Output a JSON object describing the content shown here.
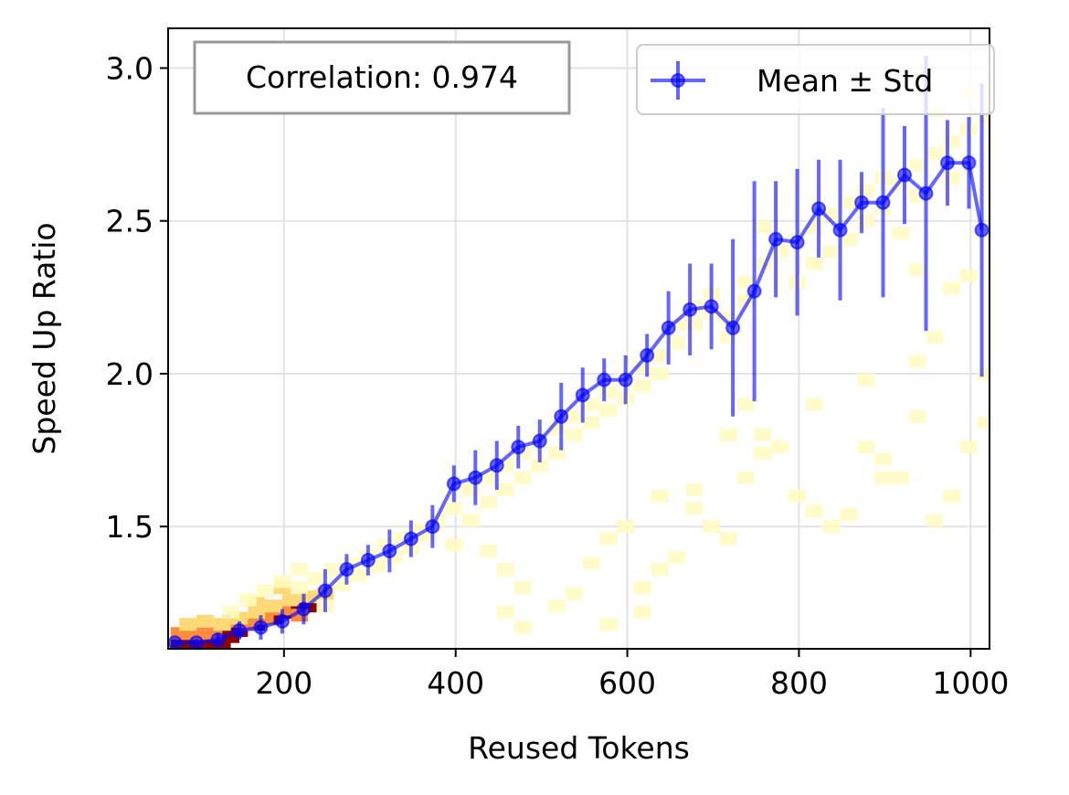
{
  "chart_data": {
    "type": "line",
    "xlabel": "Reused Tokens",
    "ylabel": "Speed Up Ratio",
    "xlim": [
      65,
      1022
    ],
    "ylim": [
      1.1,
      3.13
    ],
    "xticks": [
      200,
      400,
      600,
      800,
      1000
    ],
    "yticks": [
      1.5,
      2.0,
      2.5,
      3.0
    ],
    "xtick_labels": [
      "200",
      "400",
      "600",
      "800",
      "1000"
    ],
    "ytick_labels": [
      "1.5",
      "2.0",
      "2.5",
      "3.0"
    ],
    "grid": true,
    "legend_position": "top-right",
    "annotation": "Correlation: 0.974",
    "colors": {
      "series": "#0000ff",
      "heat_low": "#fffcc0",
      "heat_mid": "#fd8d3c",
      "heat_high": "#8b0000"
    },
    "series": [
      {
        "name": "Mean ± Std",
        "x": [
          73,
          98,
          123,
          148,
          173,
          198,
          223,
          248,
          273,
          298,
          323,
          348,
          373,
          398,
          423,
          448,
          473,
          498,
          523,
          548,
          573,
          598,
          623,
          648,
          673,
          698,
          723,
          748,
          773,
          798,
          823,
          848,
          873,
          898,
          923,
          948,
          973,
          998,
          1013
        ],
        "y": [
          1.12,
          1.12,
          1.13,
          1.16,
          1.17,
          1.19,
          1.23,
          1.29,
          1.36,
          1.39,
          1.42,
          1.46,
          1.5,
          1.64,
          1.66,
          1.7,
          1.76,
          1.78,
          1.86,
          1.93,
          1.98,
          1.98,
          2.06,
          2.15,
          2.21,
          2.22,
          2.15,
          2.27,
          2.44,
          2.43,
          2.54,
          2.47,
          2.56,
          2.56,
          2.65,
          2.59,
          2.69,
          2.69,
          2.47
        ],
        "std": [
          0.01,
          0.01,
          0.02,
          0.03,
          0.04,
          0.04,
          0.05,
          0.07,
          0.05,
          0.05,
          0.07,
          0.06,
          0.07,
          0.06,
          0.09,
          0.08,
          0.07,
          0.07,
          0.11,
          0.09,
          0.07,
          0.08,
          0.07,
          0.12,
          0.15,
          0.14,
          0.29,
          0.36,
          0.19,
          0.24,
          0.16,
          0.23,
          0.1,
          0.31,
          0.16,
          0.45,
          0.14,
          0.15,
          0.48
        ]
      }
    ],
    "heatmap": {
      "cells": [
        [
          78,
          1.12,
          3
        ],
        [
          98,
          1.12,
          3
        ],
        [
          118,
          1.12,
          3
        ],
        [
          128,
          1.12,
          3
        ],
        [
          138,
          1.14,
          3
        ],
        [
          148,
          1.16,
          3
        ],
        [
          168,
          1.18,
          3
        ],
        [
          188,
          1.2,
          3
        ],
        [
          208,
          1.22,
          3
        ],
        [
          228,
          1.24,
          3
        ],
        [
          78,
          1.15,
          2
        ],
        [
          98,
          1.15,
          2
        ],
        [
          118,
          1.15,
          2
        ],
        [
          138,
          1.19,
          2
        ],
        [
          158,
          1.18,
          2
        ],
        [
          178,
          1.2,
          2
        ],
        [
          198,
          1.23,
          2
        ],
        [
          218,
          1.21,
          2
        ],
        [
          88,
          1.18,
          1
        ],
        [
          108,
          1.19,
          1
        ],
        [
          128,
          1.18,
          1
        ],
        [
          148,
          1.2,
          1
        ],
        [
          168,
          1.22,
          1
        ],
        [
          188,
          1.24,
          1
        ],
        [
          208,
          1.26,
          1
        ],
        [
          228,
          1.27,
          1
        ],
        [
          248,
          1.28,
          1
        ],
        [
          168,
          1.25,
          1
        ],
        [
          198,
          1.3,
          1
        ],
        [
          138,
          1.22,
          0
        ],
        [
          158,
          1.26,
          0
        ],
        [
          178,
          1.29,
          0
        ],
        [
          198,
          1.32,
          0
        ],
        [
          218,
          1.3,
          0
        ],
        [
          238,
          1.33,
          0
        ],
        [
          258,
          1.36,
          0
        ],
        [
          278,
          1.38,
          0
        ],
        [
          298,
          1.4,
          0
        ],
        [
          318,
          1.44,
          0
        ],
        [
          338,
          1.46,
          0
        ],
        [
          358,
          1.49,
          0
        ],
        [
          378,
          1.52,
          0
        ],
        [
          218,
          1.36,
          0
        ],
        [
          248,
          1.24,
          0
        ],
        [
          268,
          1.31,
          0
        ],
        [
          288,
          1.34,
          0
        ],
        [
          308,
          1.37,
          0
        ],
        [
          328,
          1.4,
          0
        ],
        [
          348,
          1.43,
          0
        ],
        [
          368,
          1.47,
          0
        ],
        [
          398,
          1.56,
          0
        ],
        [
          418,
          1.62,
          0
        ],
        [
          438,
          1.66,
          0
        ],
        [
          458,
          1.7,
          0
        ],
        [
          478,
          1.74,
          0
        ],
        [
          398,
          1.44,
          0
        ],
        [
          418,
          1.52,
          0
        ],
        [
          438,
          1.58,
          0
        ],
        [
          458,
          1.62,
          0
        ],
        [
          478,
          1.66,
          0
        ],
        [
          498,
          1.78,
          0
        ],
        [
          518,
          1.82,
          0
        ],
        [
          538,
          1.86,
          0
        ],
        [
          558,
          1.9,
          0
        ],
        [
          578,
          1.94,
          0
        ],
        [
          598,
          1.98,
          0
        ],
        [
          618,
          2.02,
          0
        ],
        [
          638,
          2.06,
          0
        ],
        [
          498,
          1.7,
          0
        ],
        [
          518,
          1.74,
          0
        ],
        [
          538,
          1.8,
          0
        ],
        [
          558,
          1.84,
          0
        ],
        [
          578,
          1.88,
          0
        ],
        [
          598,
          1.92,
          0
        ],
        [
          618,
          1.96,
          0
        ],
        [
          638,
          2.0,
          0
        ],
        [
          658,
          2.1,
          0
        ],
        [
          678,
          2.16,
          0
        ],
        [
          698,
          2.2,
          0
        ],
        [
          718,
          2.18,
          0
        ],
        [
          738,
          2.24,
          0
        ],
        [
          658,
          2.16,
          0
        ],
        [
          678,
          2.22,
          0
        ],
        [
          698,
          2.26,
          0
        ],
        [
          718,
          2.12,
          0
        ],
        [
          738,
          2.3,
          0
        ],
        [
          758,
          2.36,
          0
        ],
        [
          778,
          2.4,
          0
        ],
        [
          798,
          2.44,
          0
        ],
        [
          818,
          2.48,
          0
        ],
        [
          838,
          2.52,
          0
        ],
        [
          858,
          2.56,
          0
        ],
        [
          878,
          2.6,
          0
        ],
        [
          898,
          2.64,
          0
        ],
        [
          858,
          2.44,
          0
        ],
        [
          878,
          2.5,
          0
        ],
        [
          898,
          2.54,
          0
        ],
        [
          918,
          2.62,
          0
        ],
        [
          938,
          2.68,
          0
        ],
        [
          958,
          2.72,
          0
        ],
        [
          978,
          2.76,
          0
        ],
        [
          998,
          2.8,
          0
        ],
        [
          1018,
          2.84,
          0
        ],
        [
          978,
          2.64,
          0
        ],
        [
          998,
          2.92,
          0
        ],
        [
          958,
          2.86,
          0
        ],
        [
          938,
          2.58,
          0
        ],
        [
          438,
          1.42,
          0
        ],
        [
          458,
          1.36,
          0
        ],
        [
          478,
          1.3,
          0
        ],
        [
          458,
          1.22,
          0
        ],
        [
          478,
          1.17,
          0
        ],
        [
          538,
          1.28,
          0
        ],
        [
          558,
          1.38,
          0
        ],
        [
          578,
          1.46,
          0
        ],
        [
          598,
          1.5,
          0
        ],
        [
          618,
          1.3,
          0
        ],
        [
          638,
          1.36,
          0
        ],
        [
          658,
          1.4,
          0
        ],
        [
          678,
          1.56,
          0
        ],
        [
          698,
          1.5,
          0
        ],
        [
          718,
          1.46,
          0
        ],
        [
          738,
          1.66,
          0
        ],
        [
          758,
          1.8,
          0
        ],
        [
          778,
          1.76,
          0
        ],
        [
          798,
          1.6,
          0
        ],
        [
          818,
          1.55,
          0
        ],
        [
          838,
          1.5,
          0
        ],
        [
          858,
          1.54,
          0
        ],
        [
          878,
          1.76,
          0
        ],
        [
          898,
          1.66,
          0
        ],
        [
          918,
          1.66,
          0
        ],
        [
          938,
          1.86,
          0
        ],
        [
          958,
          1.52,
          0
        ],
        [
          978,
          1.6,
          0
        ],
        [
          998,
          1.76,
          0
        ],
        [
          1018,
          1.84,
          0
        ],
        [
          938,
          2.04,
          0
        ],
        [
          958,
          2.12,
          0
        ],
        [
          978,
          2.28,
          0
        ],
        [
          998,
          2.32,
          0
        ],
        [
          1018,
          2.0,
          0
        ],
        [
          878,
          1.98,
          0
        ],
        [
          898,
          1.72,
          0
        ],
        [
          818,
          1.9,
          0
        ],
        [
          758,
          2.48,
          0
        ],
        [
          798,
          2.3,
          0
        ],
        [
          818,
          2.36,
          0
        ],
        [
          838,
          2.4,
          0
        ],
        [
          918,
          2.46,
          0
        ],
        [
          938,
          2.34,
          0
        ],
        [
          738,
          1.9,
          0
        ],
        [
          758,
          1.74,
          0
        ],
        [
          718,
          1.8,
          0
        ],
        [
          678,
          1.62,
          0
        ],
        [
          638,
          1.6,
          0
        ],
        [
          618,
          1.22,
          0
        ],
        [
          578,
          1.18,
          0
        ],
        [
          518,
          1.24,
          0
        ]
      ]
    }
  }
}
